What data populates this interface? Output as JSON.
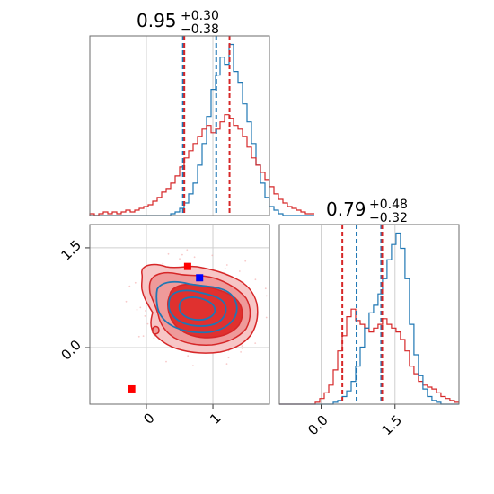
{
  "chart_data": [
    {
      "type": "histogram",
      "panel": "top-left",
      "title": {
        "value": "0.95",
        "upper": "+0.30",
        "lower": "−0.38"
      },
      "xlim": [
        -0.85,
        1.85
      ],
      "xgrid": [
        0,
        1
      ],
      "bins_x_start": -0.85,
      "bin_width": 0.0675,
      "series": [
        {
          "name": "",
          "color": "#1f77b4",
          "counts": [
            0,
            0,
            0,
            0,
            0,
            0,
            0,
            0,
            0,
            0,
            0,
            0,
            0,
            0,
            0,
            0,
            0,
            0,
            1,
            2,
            4,
            7,
            12,
            18,
            28,
            40,
            55,
            70,
            78,
            88,
            84,
            95,
            80,
            74,
            62,
            52,
            40,
            28,
            18,
            10,
            5,
            3,
            1,
            0,
            0,
            0,
            0,
            0,
            0,
            0
          ],
          "dashed_lines": [
            0.55,
            1.05
          ]
        },
        {
          "name": "",
          "color": "#d62728",
          "counts": [
            1,
            0,
            1,
            2,
            1,
            2,
            1,
            2,
            3,
            2,
            3,
            4,
            5,
            6,
            8,
            10,
            13,
            15,
            18,
            22,
            27,
            32,
            36,
            40,
            44,
            48,
            50,
            46,
            48,
            52,
            56,
            54,
            50,
            48,
            44,
            38,
            32,
            28,
            24,
            20,
            16,
            12,
            9,
            7,
            5,
            4,
            3,
            2,
            1,
            1
          ],
          "dashed_lines": [
            0.57,
            1.25
          ]
        }
      ]
    },
    {
      "type": "contour",
      "panel": "bottom-left",
      "xlim": [
        -0.85,
        1.85
      ],
      "ylim": [
        -0.85,
        1.85
      ],
      "xticks": [
        "0",
        "1"
      ],
      "yticks": [
        "0.0",
        "1.5"
      ],
      "xgrid": [
        0,
        1
      ],
      "ygrid": [
        0,
        1.5
      ],
      "series": [
        {
          "name": "",
          "color": "#d62728",
          "center": [
            0.98,
            1.07
          ],
          "markers": [
            [
              -0.22,
              -0.62
            ],
            [
              0.62,
              1.22
            ]
          ]
        },
        {
          "name": "",
          "color": "#1f77b4",
          "center": [
            0.85,
            1.05
          ],
          "markers": [
            [
              0.8,
              1.05
            ]
          ]
        }
      ]
    },
    {
      "type": "histogram",
      "panel": "bottom-right",
      "title": {
        "value": "0.79",
        "upper": "+0.48",
        "lower": "−0.32"
      },
      "xlim": [
        -0.85,
        2.8
      ],
      "xticks": [
        "0.0",
        "1.5"
      ],
      "xgrid": [
        0,
        1.5
      ],
      "bins_x_start": -0.85,
      "bin_width": 0.0912,
      "series": [
        {
          "name": "",
          "color": "#1f77b4",
          "counts": [
            0,
            0,
            0,
            0,
            0,
            0,
            0,
            0,
            0,
            0,
            0,
            0,
            1,
            2,
            4,
            7,
            12,
            20,
            30,
            40,
            48,
            52,
            58,
            66,
            76,
            84,
            90,
            82,
            66,
            42,
            26,
            15,
            8,
            4,
            2,
            1,
            0,
            0,
            0,
            0
          ],
          "dashed_lines": [
            0.72,
            1.22
          ]
        },
        {
          "name": "",
          "color": "#d62728",
          "counts": [
            0,
            0,
            0,
            0,
            0,
            0,
            0,
            0,
            1,
            3,
            6,
            10,
            18,
            28,
            36,
            46,
            50,
            44,
            42,
            40,
            38,
            40,
            42,
            45,
            42,
            40,
            38,
            34,
            28,
            20,
            16,
            12,
            10,
            9,
            8,
            6,
            4,
            3,
            2,
            1
          ],
          "dashed_lines": [
            0.43,
            1.24
          ]
        }
      ]
    }
  ]
}
